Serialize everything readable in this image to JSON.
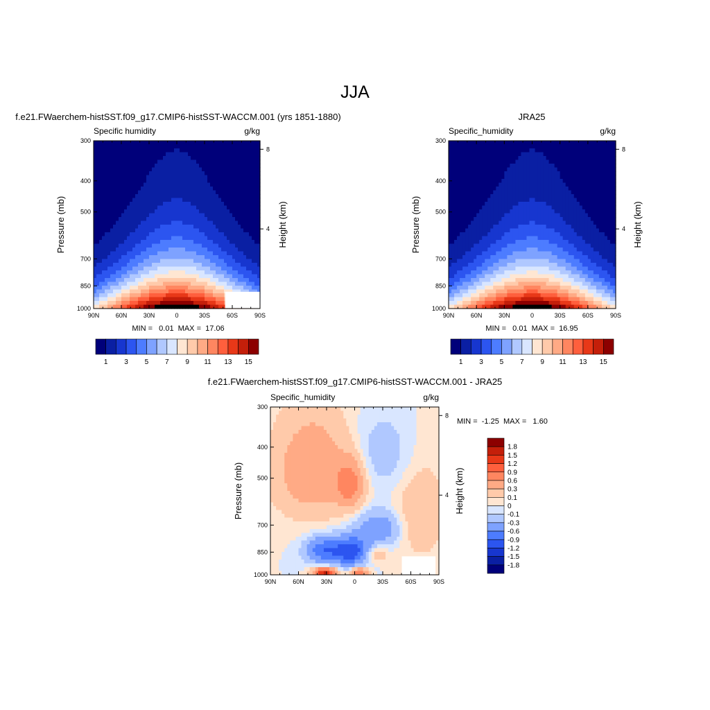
{
  "figure": {
    "title": "JJA",
    "colors": {
      "abs_palette": [
        "#00007a",
        "#0a1fa3",
        "#1736cf",
        "#2c55f0",
        "#4d7cff",
        "#7ea2ff",
        "#b0c8ff",
        "#d9e6ff",
        "#ffe6d2",
        "#ffcaaa",
        "#ffaa85",
        "#ff8660",
        "#ff5f3d",
        "#e83818",
        "#c41f0a",
        "#8c0000"
      ],
      "diff_palette": [
        "#00007a",
        "#0a1fa3",
        "#1736cf",
        "#2c55f0",
        "#4d7cff",
        "#7ea2ff",
        "#b0c8ff",
        "#d9e6ff",
        "#ffe6d2",
        "#ffcaaa",
        "#ffaa85",
        "#ff8660",
        "#ff5f3d",
        "#e83818",
        "#c41f0a",
        "#8c0000"
      ]
    }
  },
  "chart_data": [
    {
      "id": "model",
      "type": "heatmap",
      "title": "f.e21.FWaerchem-histSST.f09_g17.CMIP6-histSST-WACCM.001 (yrs 1851-1880)",
      "left_label": "Specific humidity",
      "right_label": "g/kg",
      "xlabel": "",
      "ylabel": "Pressure (mb)",
      "y2label": "Height (km)",
      "x_ticks": [
        "90N",
        "60N",
        "30N",
        "0",
        "30S",
        "60S",
        "90S"
      ],
      "x_range": [
        90,
        -90
      ],
      "y_ticks": [
        300,
        400,
        500,
        700,
        850,
        1000
      ],
      "y_range": [
        300,
        1000
      ],
      "y2_ticks": [
        8,
        4
      ],
      "min_max_text": "MIN =   0.01  MAX =  17.06",
      "min": 0.01,
      "max": 17.06,
      "peak_lat": 0,
      "colorbar_labels": [
        "1",
        "3",
        "5",
        "7",
        "9",
        "11",
        "13",
        "15"
      ]
    },
    {
      "id": "obs",
      "type": "heatmap",
      "title": "JRA25",
      "left_label": "Specific_humidity",
      "right_label": "g/kg",
      "xlabel": "",
      "ylabel": "Pressure (mb)",
      "y2label": "Height (km)",
      "x_ticks": [
        "90N",
        "60N",
        "30N",
        "0",
        "30S",
        "60S",
        "90S"
      ],
      "x_range": [
        90,
        -90
      ],
      "y_ticks": [
        300,
        400,
        500,
        700,
        850,
        1000
      ],
      "y_range": [
        300,
        1000
      ],
      "y2_ticks": [
        8,
        4
      ],
      "min_max_text": "MIN =   0.01  MAX =  16.95",
      "min": 0.01,
      "max": 16.95,
      "peak_lat": 0,
      "colorbar_labels": [
        "1",
        "3",
        "5",
        "7",
        "9",
        "11",
        "13",
        "15"
      ]
    },
    {
      "id": "diff",
      "type": "heatmap",
      "title": "f.e21.FWaerchem-histSST.f09_g17.CMIP6-histSST-WACCM.001 - JRA25",
      "left_label": "Specific_humidity",
      "right_label": "g/kg",
      "xlabel": "",
      "ylabel": "Pressure (mb)",
      "y2label": "Height (km)",
      "x_ticks": [
        "90N",
        "60N",
        "30N",
        "0",
        "30S",
        "60S",
        "90S"
      ],
      "x_range": [
        90,
        -90
      ],
      "y_ticks": [
        300,
        400,
        500,
        700,
        850,
        1000
      ],
      "y_range": [
        300,
        1000
      ],
      "y2_ticks": [
        8,
        4
      ],
      "min_max_text": "MIN =  -1.25  MAX =   1.60",
      "min": -1.25,
      "max": 1.6,
      "colorbar_labels": [
        "1.8",
        "1.5",
        "1.2",
        "0.9",
        "0.6",
        "0.3",
        "0.1",
        "0",
        "-0.1",
        "-0.3",
        "-0.6",
        "-0.9",
        "-1.2",
        "-1.5",
        "-1.8"
      ]
    }
  ]
}
